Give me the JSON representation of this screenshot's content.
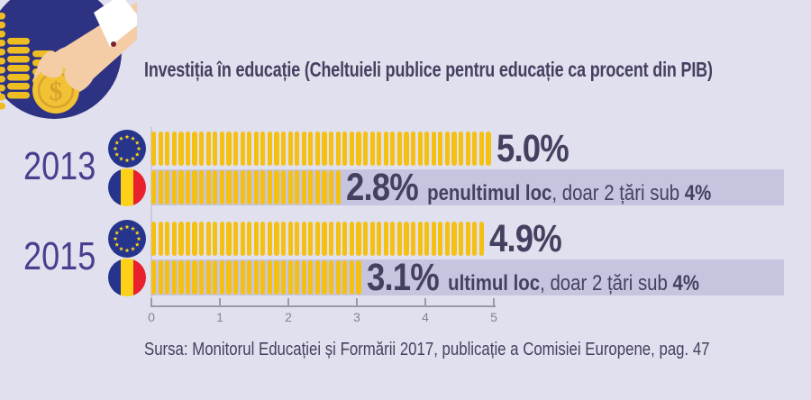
{
  "icons": {
    "badge": "hand-inserting-coin-icon",
    "flags": [
      "eu-flag-icon",
      "romania-flag-icon"
    ]
  },
  "chart_data": {
    "type": "bar",
    "title": "Investiția în educație (Cheltuieli publice pentru educație ca procent din PIB)",
    "xlabel": "",
    "ylabel": "",
    "xlim": [
      0,
      5
    ],
    "x_ticks": [
      "0",
      "1",
      "2",
      "3",
      "4",
      "5"
    ],
    "grid": false,
    "legend": "flag icons per bar (EU / Romania)",
    "groups": [
      {
        "year": "2013",
        "bars": [
          {
            "flag": "eu",
            "value": 5.0,
            "label": "5.0%",
            "highlighted": false
          },
          {
            "flag": "ro",
            "value": 2.8,
            "label": "2.8%",
            "highlighted": true,
            "note_bold": "penultimul loc",
            "note_mid": ", doar 2 țări sub ",
            "note_end": "4%"
          }
        ]
      },
      {
        "year": "2015",
        "bars": [
          {
            "flag": "eu",
            "value": 4.9,
            "label": "4.9%",
            "highlighted": false
          },
          {
            "flag": "ro",
            "value": 3.1,
            "label": "3.1%",
            "highlighted": true,
            "note_bold": "ultimul loc",
            "note_mid": ", doar 2 țări sub ",
            "note_end": "4%"
          }
        ]
      }
    ],
    "source": "Sursa: Monitorul Educației și Formării 2017, publicație a Comisiei Europene, pag. 47"
  },
  "colors": {
    "background": "#e1e0ee",
    "bar_yellow": "#f5c010",
    "highlight_band": "#c6c5df",
    "ink": "#454060",
    "year_purple": "#4a3e8e",
    "axis": "#9a9aa6",
    "axis_label": "#85858f",
    "badge_navy": "#2d3282",
    "eu_blue": "#26348c",
    "star_yellow": "#ffd617",
    "ro_yellow": "#fcd117",
    "ro_red": "#e8212d"
  }
}
